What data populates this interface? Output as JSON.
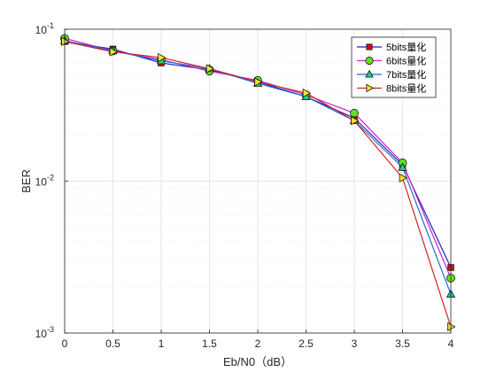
{
  "chart_data": {
    "type": "line",
    "xlabel": "Eb/N0（dB）",
    "ylabel": "BER",
    "yscale": "log",
    "xlim": [
      0,
      4
    ],
    "ylim": [
      0.001,
      0.1
    ],
    "grid": true,
    "legend_position": "top-right",
    "x": [
      0,
      0.5,
      1,
      1.5,
      2,
      2.5,
      3,
      3.5,
      4
    ],
    "x_ticks": [
      "0",
      "0.5",
      "1",
      "1.5",
      "2",
      "2.5",
      "3",
      "3.5",
      "4"
    ],
    "y_ticks": [
      {
        "value": 0.1,
        "base": "10",
        "exp": "-1"
      },
      {
        "value": 0.01,
        "base": "10",
        "exp": "-2"
      },
      {
        "value": 0.001,
        "base": "10",
        "exp": "-3"
      }
    ],
    "series": [
      {
        "name": "5bits量化",
        "line_color": "#1f1fbf",
        "marker": "square",
        "marker_fill": "#cc1111",
        "values": [
          0.083,
          0.074,
          0.06,
          0.054,
          0.045,
          0.036,
          0.026,
          0.0128,
          0.0027
        ]
      },
      {
        "name": "6bits量化",
        "line_color": "#cc22cc",
        "marker": "circle",
        "marker_fill": "#66dd22",
        "values": [
          0.087,
          0.072,
          0.063,
          0.053,
          0.046,
          0.037,
          0.028,
          0.0132,
          0.0023
        ]
      },
      {
        "name": "7bits量化",
        "line_color": "#1f6ecc",
        "marker": "triangle-up",
        "marker_fill": "#22cc88",
        "values": [
          0.084,
          0.072,
          0.062,
          0.055,
          0.044,
          0.036,
          0.025,
          0.0123,
          0.0018
        ]
      },
      {
        "name": "8bits量化",
        "line_color": "#d42020",
        "marker": "triangle-right",
        "marker_fill": "#f0e030",
        "values": [
          0.083,
          0.071,
          0.065,
          0.055,
          0.045,
          0.038,
          0.025,
          0.0105,
          0.0011
        ]
      }
    ]
  }
}
